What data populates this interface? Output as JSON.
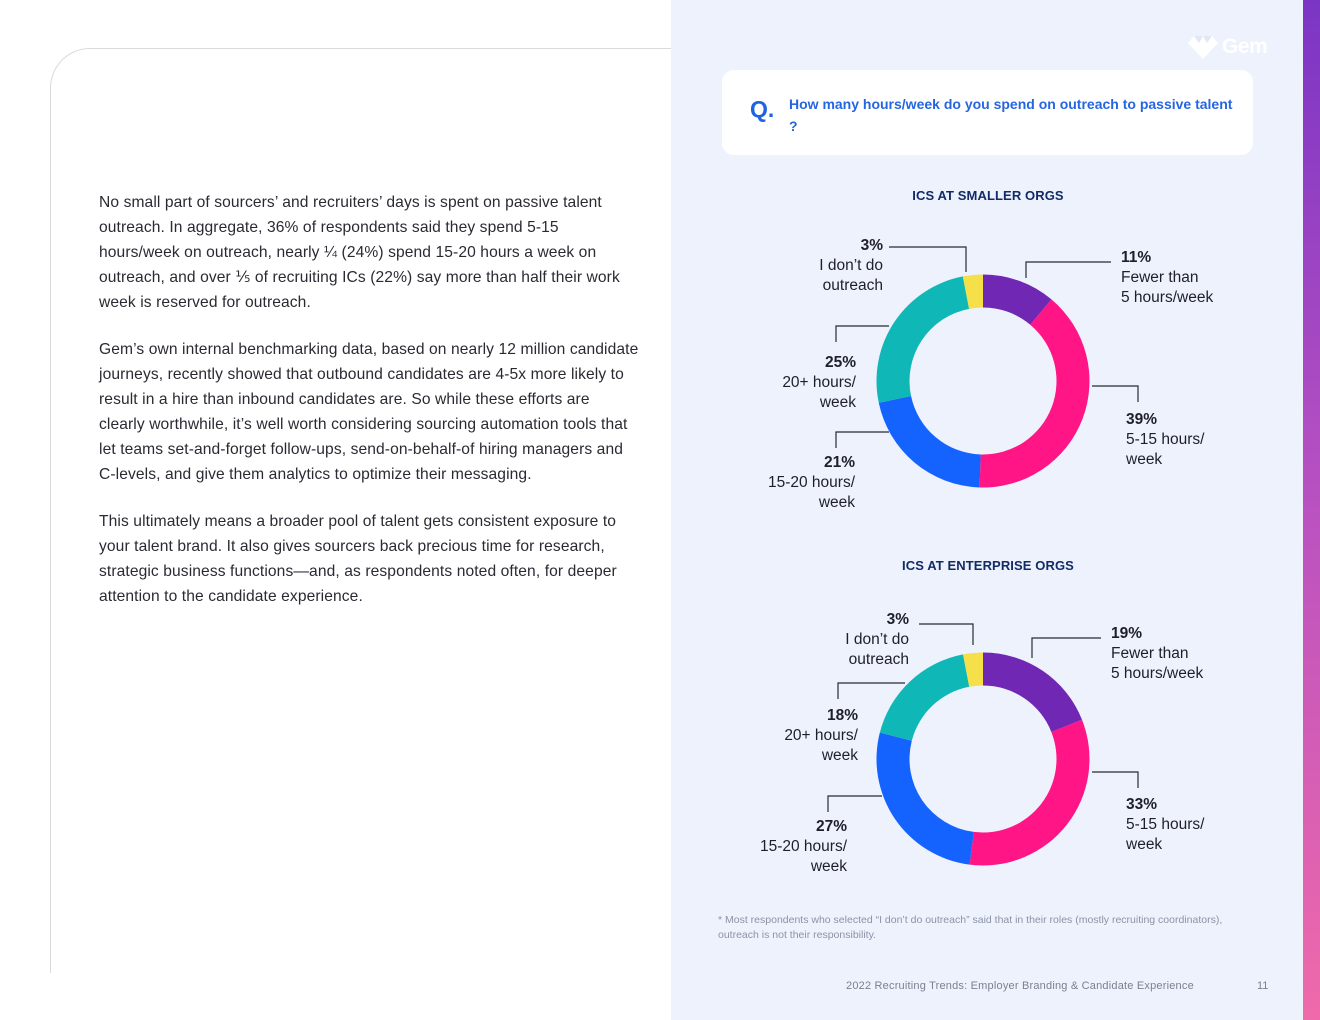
{
  "brand": {
    "logo_text": "Gem"
  },
  "body": {
    "paragraphs": [
      "No small part of sourcers’ and recruiters’ days is spent on passive talent outreach. In aggregate, 36% of respondents said they spend 5-15 hours/week on outreach, nearly ¼ (24%) spend 15-20 hours a week on outreach, and over ⅕ of recruiting ICs (22%) say more than half their work week is reserved for outreach.",
      "Gem’s own internal benchmarking data, based on nearly 12 million candidate journeys, recently showed that outbound candidates are 4-5x more likely to result in a hire than inbound candidates are. So while these efforts are clearly worthwhile, it’s well worth considering sourcing automation tools that let teams set-and-forget follow-ups, send-on-behalf-of hiring managers and C-levels, and give them analytics to optimize their messaging.",
      "This ultimately means a broader pool of talent gets consistent exposure to your talent brand. It also gives sourcers back precious time for research, strategic business functions—and, as respondents noted often, for deeper attention to the candidate experience."
    ]
  },
  "question": {
    "mark": "Q.",
    "text": "How many hours/week do you spend on outreach to passive talent ?"
  },
  "chart_data": [
    {
      "type": "pie",
      "style": "donut",
      "title": "ICS AT SMALLER ORGS",
      "slices": [
        {
          "label": "Fewer than 5 hours/week",
          "value": 11,
          "pct_label": "11%",
          "color": "#6f27b4"
        },
        {
          "label": "5-15 hours/ week",
          "value": 39,
          "pct_label": "39%",
          "color": "#ff1585"
        },
        {
          "label": "15-20 hours/ week",
          "value": 21,
          "pct_label": "21%",
          "color": "#1563ff"
        },
        {
          "label": "20+ hours/ week",
          "value": 25,
          "pct_label": "25%",
          "color": "#0fb8b6"
        },
        {
          "label": "I don’t do outreach",
          "value": 3,
          "pct_label": "3%",
          "color": "#f5e04a"
        }
      ]
    },
    {
      "type": "pie",
      "style": "donut",
      "title": "ICS AT ENTERPRISE ORGS",
      "slices": [
        {
          "label": "Fewer than 5 hours/week",
          "value": 19,
          "pct_label": "19%",
          "color": "#6f27b4"
        },
        {
          "label": "5-15 hours/ week",
          "value": 33,
          "pct_label": "33%",
          "color": "#ff1585"
        },
        {
          "label": "15-20 hours/ week",
          "value": 27,
          "pct_label": "27%",
          "color": "#1563ff"
        },
        {
          "label": "20+ hours/ week",
          "value": 18,
          "pct_label": "18%",
          "color": "#0fb8b6"
        },
        {
          "label": "I don’t do outreach",
          "value": 3,
          "pct_label": "3%",
          "color": "#f5e04a"
        }
      ]
    }
  ],
  "labels": {
    "c0": [
      {
        "pct": "11%",
        "l1": "Fewer than",
        "l2": "5 hours/week"
      },
      {
        "pct": "39%",
        "l1": "5-15 hours/",
        "l2": "week"
      },
      {
        "pct": "21%",
        "l1": "15-20 hours/",
        "l2": "week"
      },
      {
        "pct": "25%",
        "l1": "20+ hours/",
        "l2": "week"
      },
      {
        "pct": "3%",
        "l1": "I don’t do",
        "l2": "outreach"
      }
    ],
    "c1": [
      {
        "pct": "19%",
        "l1": "Fewer than",
        "l2": "5 hours/week"
      },
      {
        "pct": "33%",
        "l1": "5-15 hours/",
        "l2": "week"
      },
      {
        "pct": "27%",
        "l1": "15-20 hours/",
        "l2": "week"
      },
      {
        "pct": "18%",
        "l1": "20+ hours/",
        "l2": "week"
      },
      {
        "pct": "3%",
        "l1": "I don’t do",
        "l2": "outreach"
      }
    ]
  },
  "footnote": "* Most respondents who selected “I don’t do outreach” said that in their roles (mostly recruiting coordinators), outreach is not their responsibility.",
  "footer": {
    "title": "2022 Recruiting Trends: Employer Branding & Candidate Experience",
    "page": "11"
  }
}
